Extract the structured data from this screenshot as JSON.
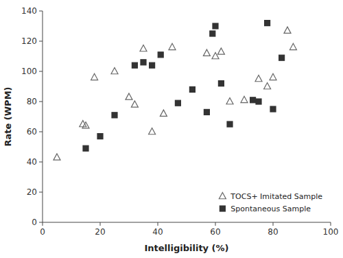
{
  "chart_data": {
    "type": "scatter",
    "xlabel": "Intelligibility (%)",
    "ylabel": "Rate (WPM)",
    "xlim": [
      0,
      100
    ],
    "ylim": [
      0,
      140
    ],
    "xticks": [
      0,
      20,
      40,
      60,
      80,
      100
    ],
    "yticks": [
      0,
      20,
      40,
      60,
      80,
      100,
      120,
      140
    ],
    "grid": false,
    "legend": "lower right",
    "series": [
      {
        "name": "TOCS+ Imitated Sample",
        "color": "#666666",
        "marker": "triangle-open",
        "x": [
          5,
          14,
          15,
          18,
          25,
          30,
          32,
          35,
          38,
          42,
          45,
          57,
          60,
          62,
          65,
          70,
          75,
          78,
          80,
          85,
          87
        ],
        "values": [
          43,
          65,
          64,
          96,
          100,
          83,
          78,
          115,
          60,
          72,
          116,
          112,
          110,
          113,
          80,
          81,
          95,
          90,
          96,
          127,
          116
        ]
      },
      {
        "name": "Spontaneous Sample",
        "color": "#333333",
        "marker": "square",
        "x": [
          15,
          20,
          25,
          32,
          35,
          38,
          41,
          47,
          52,
          57,
          59,
          60,
          62,
          65,
          73,
          75,
          78,
          80,
          83
        ],
        "values": [
          49,
          57,
          71,
          104,
          106,
          104,
          111,
          79,
          88,
          73,
          125,
          130,
          92,
          65,
          81,
          80,
          132,
          75,
          109
        ]
      }
    ]
  }
}
